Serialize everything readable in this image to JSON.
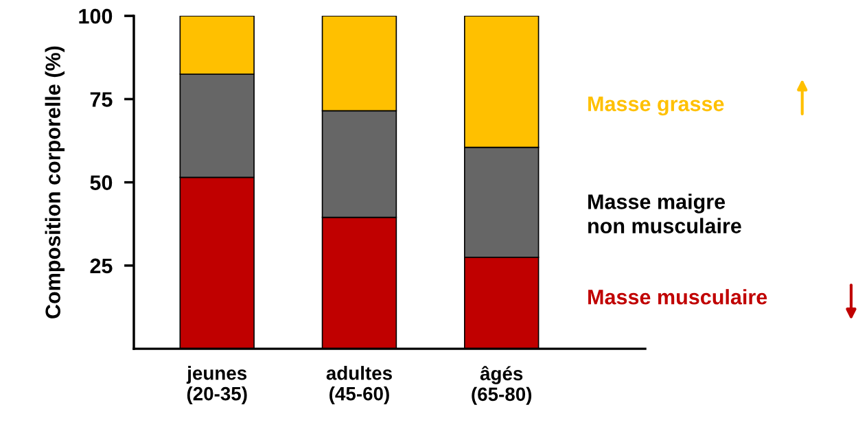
{
  "chart_data": {
    "type": "bar",
    "stacked": true,
    "ylabel": "Composition corporelle (%)",
    "categories": [
      "jeunes\n(20-35)",
      "adultes\n(45-60)",
      "âgés\n(65-80)"
    ],
    "series": [
      {
        "name": "Masse musculaire",
        "color": "#c00000",
        "values": [
          51.5,
          39.5,
          27.5
        ]
      },
      {
        "name": "Masse maigre\nnon musculaire",
        "color": "#666666",
        "values": [
          31,
          32,
          33
        ]
      },
      {
        "name": "Masse grasse",
        "color": "#ffc000",
        "values": [
          17.5,
          28.5,
          39.5
        ]
      }
    ],
    "ylim": [
      0,
      100
    ],
    "yticks": [
      25,
      50,
      75,
      100
    ],
    "grid": false,
    "legend": "right"
  }
}
